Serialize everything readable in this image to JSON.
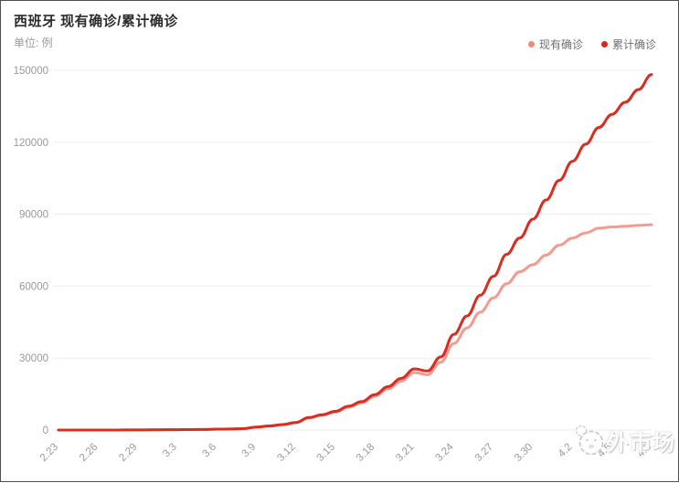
{
  "header": {
    "title": "西班牙 现有确诊/累计确诊",
    "subtitle": "单位: 例"
  },
  "legend": {
    "items": [
      {
        "label": "现有确诊",
        "color": "#f08a7c"
      },
      {
        "label": "累计确诊",
        "color": "#d8261b"
      }
    ]
  },
  "watermark": {
    "text": "外市场",
    "icon": "mascot-face-icon"
  },
  "colors": {
    "current_line": "#f59a90",
    "cumulative_line": "#dc2b20",
    "grid": "#ededed",
    "axis_label": "#999999"
  },
  "chart_data": {
    "type": "line",
    "title": "西班牙 现有确诊/累计确诊",
    "xlabel": "",
    "ylabel": "单位: 例",
    "ylim": [
      0,
      150000
    ],
    "y_ticks": [
      0,
      30000,
      60000,
      90000,
      120000,
      150000
    ],
    "y_tick_labels": [
      "0",
      "30000",
      "60000",
      "90000",
      "120000",
      "150000"
    ],
    "grid": true,
    "legend_position": "top-right",
    "smooth": true,
    "x_tick_every": 3,
    "x": [
      "2.23",
      "2.24",
      "2.25",
      "2.26",
      "2.27",
      "2.28",
      "2.29",
      "3.1",
      "3.2",
      "3.3",
      "3.4",
      "3.5",
      "3.6",
      "3.7",
      "3.8",
      "3.9",
      "3.10",
      "3.11",
      "3.12",
      "3.13",
      "3.14",
      "3.15",
      "3.16",
      "3.17",
      "3.18",
      "3.19",
      "3.20",
      "3.21",
      "3.22",
      "3.23",
      "3.24",
      "3.25",
      "3.26",
      "3.27",
      "3.28",
      "3.29",
      "3.30",
      "3.31",
      "4.1",
      "4.2",
      "4.3",
      "4.4",
      "4.5",
      "4.6",
      "4.7",
      "4.8"
    ],
    "x_tick_labels": [
      "2.23",
      "2.26",
      "2.29",
      "3.3",
      "3.6",
      "3.9",
      "3.12",
      "3.15",
      "3.18",
      "3.21",
      "3.24",
      "3.27",
      "3.30",
      "4.2",
      "4.5",
      "4.8"
    ],
    "series": [
      {
        "name": "现有确诊",
        "color": "#f59a90",
        "values": [
          2,
          3,
          6,
          13,
          15,
          31,
          43,
          81,
          116,
          146,
          191,
          228,
          360,
          413,
          566,
          1184,
          1628,
          2188,
          3030,
          5030,
          6149,
          7490,
          9540,
          11330,
          14100,
          17200,
          20400,
          24000,
          23100,
          28300,
          36085,
          42610,
          49100,
          55095,
          61000,
          66000,
          68956,
          72956,
          77100,
          80065,
          82199,
          84168,
          84646,
          84975,
          85342,
          85610
        ]
      },
      {
        "name": "累计确诊",
        "color": "#dc2b20",
        "values": [
          2,
          3,
          6,
          13,
          15,
          32,
          45,
          84,
          120,
          151,
          198,
          237,
          374,
          430,
          589,
          1231,
          1695,
          2277,
          3146,
          5232,
          6391,
          7798,
          9942,
          11826,
          14769,
          18077,
          21571,
          25496,
          24600,
          30500,
          39885,
          47610,
          56188,
          64095,
          73235,
          80110,
          87956,
          95923,
          104118,
          112065,
          119199,
          126168,
          131646,
          136675,
          141942,
          148220
        ]
      }
    ]
  }
}
